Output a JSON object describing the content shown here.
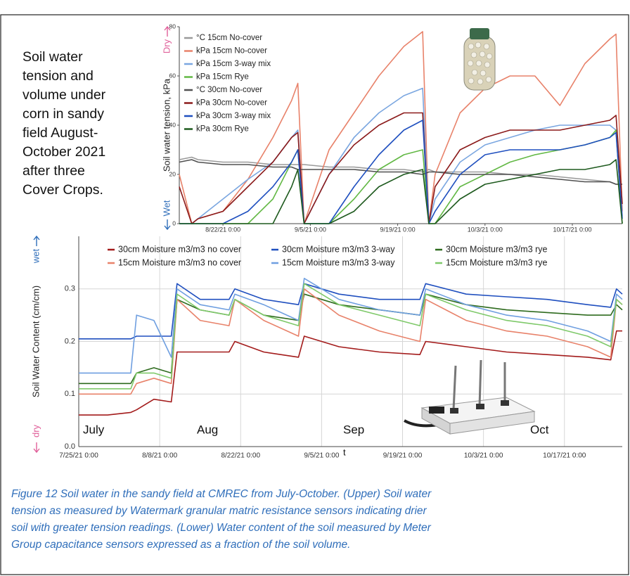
{
  "side_text": [
    "Soil water",
    "tension and",
    "volume under",
    "corn in sandy",
    "field August-",
    "October 2021",
    "after three",
    "Cover Crops."
  ],
  "caption": [
    "Figure 12  Soil water in the sandy field at CMREC from July-October. (Upper) Soil water",
    "tension as measured by Watermark granular matric resistance sensors indicating drier",
    "soil with greater tension readings. (Lower) Water content of the soil measured by Meter",
    "Group capacitance sensors expressed as a fraction of the soil volume."
  ],
  "chart_data": [
    {
      "type": "line",
      "ylabel": "Soil water tension, kPa",
      "ylabel_top": "Dry",
      "ylabel_bottom": "Wet",
      "x": [
        "8/15/21",
        "8/17/21",
        "8/18/21",
        "8/22/21",
        "8/26/21",
        "8/30/21",
        "9/2/21",
        "9/3/21",
        "9/4/21",
        "9/8/21",
        "9/12/21",
        "9/16/21",
        "9/20/21",
        "9/23/21",
        "9/24/21",
        "9/25/21",
        "9/29/21",
        "10/3/21",
        "10/7/21",
        "10/11/21",
        "10/15/21",
        "10/19/21",
        "10/23/21",
        "10/24/21",
        "10/25/21"
      ],
      "xlim": [
        "8/15/21",
        "10/25/21"
      ],
      "xticks": [
        {
          "value": "8/22/21",
          "label": "8/22/21 0:00"
        },
        {
          "value": "9/5/21",
          "label": "9/5/21 0:00"
        },
        {
          "value": "9/19/21",
          "label": "9/19/21 0:00"
        },
        {
          "value": "10/3/21",
          "label": "10/3/21 0:00"
        },
        {
          "value": "10/17/21",
          "label": "10/17/21 0:00"
        }
      ],
      "ylim": [
        0,
        80
      ],
      "yticks": [
        0,
        20,
        40,
        60,
        80
      ],
      "grid": false,
      "series": [
        {
          "name": "°C 15cm No-cover",
          "color": "#9a9a9a",
          "values": [
            26,
            27,
            26,
            25,
            25,
            24,
            24,
            24,
            24,
            23,
            23,
            22,
            22,
            21,
            22,
            21,
            21,
            21,
            20,
            20,
            19,
            18,
            17,
            16,
            16
          ]
        },
        {
          "name": "kPa 15cm No-cover",
          "color": "#e8826a",
          "values": [
            20,
            0,
            2,
            5,
            18,
            35,
            50,
            57,
            0,
            30,
            45,
            60,
            72,
            78,
            0,
            20,
            45,
            55,
            60,
            60,
            48,
            65,
            75,
            77,
            5
          ]
        },
        {
          "name": "kPa 15cm 3-way mix",
          "color": "#7aa6e0",
          "values": [
            0,
            0,
            2,
            10,
            18,
            25,
            35,
            38,
            0,
            20,
            35,
            45,
            52,
            55,
            0,
            10,
            25,
            32,
            35,
            38,
            40,
            40,
            40,
            38,
            3
          ]
        },
        {
          "name": "kPa 15cm Rye",
          "color": "#62b844",
          "values": [
            0,
            0,
            0,
            0,
            0,
            10,
            25,
            30,
            0,
            0,
            10,
            22,
            28,
            30,
            0,
            0,
            15,
            20,
            25,
            28,
            30,
            32,
            35,
            38,
            0
          ]
        },
        {
          "name": "°C 30cm No-cover",
          "color": "#505050",
          "values": [
            25,
            26,
            25,
            24,
            24,
            23,
            23,
            22,
            22,
            22,
            22,
            21,
            21,
            20,
            21,
            21,
            20,
            20,
            20,
            19,
            18,
            17,
            17,
            16,
            16
          ]
        },
        {
          "name": "kPa 30cm No-cover",
          "color": "#8b1a1a",
          "values": [
            15,
            0,
            2,
            5,
            15,
            25,
            35,
            37,
            0,
            20,
            32,
            40,
            45,
            45,
            0,
            15,
            30,
            35,
            38,
            38,
            38,
            40,
            42,
            44,
            8
          ]
        },
        {
          "name": "kPa 30cm 3-way mix",
          "color": "#1f4fbf",
          "values": [
            0,
            0,
            0,
            0,
            5,
            15,
            25,
            30,
            0,
            0,
            15,
            28,
            38,
            42,
            0,
            5,
            20,
            28,
            30,
            30,
            30,
            32,
            35,
            37,
            2
          ]
        },
        {
          "name": "kPa 30cm Rye",
          "color": "#1e5a1e",
          "values": [
            0,
            0,
            0,
            0,
            0,
            0,
            15,
            22,
            0,
            0,
            5,
            15,
            20,
            22,
            0,
            0,
            10,
            16,
            18,
            20,
            22,
            22,
            24,
            26,
            0
          ]
        }
      ]
    },
    {
      "type": "line",
      "ylabel": "Soil Water Content (cm/cm)",
      "ylabel_top": "wet",
      "ylabel_bottom": "dry",
      "x": [
        "7/25/21",
        "7/30/21",
        "8/3/21",
        "8/4/21",
        "8/7/21",
        "8/10/21",
        "8/11/21",
        "8/15/21",
        "8/20/21",
        "8/21/21",
        "8/26/21",
        "9/1/21",
        "9/2/21",
        "9/8/21",
        "9/15/21",
        "9/22/21",
        "9/23/21",
        "9/30/21",
        "10/7/21",
        "10/14/21",
        "10/21/21",
        "10/25/21",
        "10/26/21",
        "10/27/21"
      ],
      "xlim": [
        "7/25/21",
        "10/27/21"
      ],
      "xticks": [
        {
          "value": "7/25/21",
          "label": "7/25/21 0:00"
        },
        {
          "value": "8/8/21",
          "label": "8/8/21 0:00"
        },
        {
          "value": "8/22/21",
          "label": "8/22/21 0:00"
        },
        {
          "value": "9/5/21",
          "label": "9/5/21 0:00"
        },
        {
          "value": "9/19/21",
          "label": "9/19/21 0:00"
        },
        {
          "value": "10/3/21",
          "label": "10/3/21 0:00"
        },
        {
          "value": "10/17/21",
          "label": "10/17/21 0:00"
        }
      ],
      "ylim": [
        0,
        0.4
      ],
      "yticks": [
        {
          "value": 0,
          "label": "0.0"
        },
        0.1,
        0.2,
        0.3
      ],
      "grid": true,
      "annotations": [
        "July",
        "Aug",
        "Sep",
        "Oct",
        "t"
      ],
      "series": [
        {
          "name": "30cm Moisture m3/m3 no cover",
          "color": "#a31b1b",
          "values": [
            0.06,
            0.06,
            0.065,
            0.07,
            0.09,
            0.085,
            0.18,
            0.18,
            0.18,
            0.2,
            0.18,
            0.17,
            0.21,
            0.19,
            0.18,
            0.175,
            0.2,
            0.19,
            0.18,
            0.175,
            0.17,
            0.165,
            0.22,
            0.22
          ]
        },
        {
          "name": "30cm Moisture m3/m3 3-way",
          "color": "#1f4fbf",
          "values": [
            0.205,
            0.205,
            0.205,
            0.21,
            0.21,
            0.21,
            0.31,
            0.28,
            0.28,
            0.3,
            0.28,
            0.27,
            0.31,
            0.29,
            0.28,
            0.28,
            0.31,
            0.29,
            0.285,
            0.28,
            0.27,
            0.265,
            0.3,
            0.29
          ]
        },
        {
          "name": "30cm Moisture m3/m3 rye",
          "color": "#2e6b1e",
          "values": [
            0.12,
            0.12,
            0.12,
            0.14,
            0.15,
            0.14,
            0.28,
            0.26,
            0.25,
            0.28,
            0.25,
            0.24,
            0.29,
            0.27,
            0.26,
            0.25,
            0.29,
            0.27,
            0.26,
            0.255,
            0.25,
            0.25,
            0.27,
            0.26
          ]
        },
        {
          "name": "15cm Moisture m3/m3 no cover",
          "color": "#e8826a",
          "values": [
            0.1,
            0.1,
            0.1,
            0.12,
            0.13,
            0.12,
            0.28,
            0.24,
            0.23,
            0.28,
            0.24,
            0.21,
            0.3,
            0.25,
            0.22,
            0.2,
            0.28,
            0.24,
            0.22,
            0.21,
            0.19,
            0.17,
            0.28,
            0.27
          ]
        },
        {
          "name": "15cm Moisture m3/m3 3-way",
          "color": "#6f9fe0",
          "values": [
            0.14,
            0.14,
            0.14,
            0.25,
            0.24,
            0.17,
            0.3,
            0.27,
            0.26,
            0.29,
            0.27,
            0.24,
            0.32,
            0.28,
            0.26,
            0.25,
            0.3,
            0.27,
            0.25,
            0.24,
            0.22,
            0.2,
            0.29,
            0.28
          ]
        },
        {
          "name": "15cm Moisture m3/m3 rye",
          "color": "#7fc96a",
          "values": [
            0.11,
            0.11,
            0.11,
            0.14,
            0.14,
            0.13,
            0.29,
            0.26,
            0.25,
            0.28,
            0.25,
            0.23,
            0.31,
            0.27,
            0.25,
            0.23,
            0.29,
            0.26,
            0.24,
            0.23,
            0.21,
            0.19,
            0.28,
            0.27
          ]
        }
      ]
    }
  ]
}
